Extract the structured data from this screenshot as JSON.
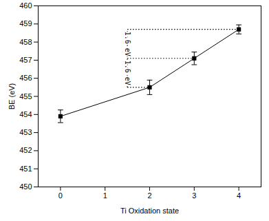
{
  "chart_data": {
    "type": "line",
    "x_label": "Ti Oxidation state",
    "y_label": "BE (eV)",
    "x": [
      0,
      2,
      3,
      4
    ],
    "values": [
      453.9,
      455.5,
      457.1,
      458.7
    ],
    "errors": [
      0.35,
      0.4,
      0.35,
      0.25
    ],
    "color": "#000000",
    "marker": "square",
    "line_style": "solid",
    "xlim": [
      -0.5,
      4.5
    ],
    "xticks": [
      0,
      1,
      2,
      3,
      4
    ],
    "ylim": [
      450,
      460
    ],
    "yticks": [
      450,
      451,
      452,
      453,
      454,
      455,
      456,
      457,
      458,
      459,
      460
    ],
    "annotations": [
      "1.6 eV",
      "1.6 eV"
    ],
    "grid": false
  }
}
